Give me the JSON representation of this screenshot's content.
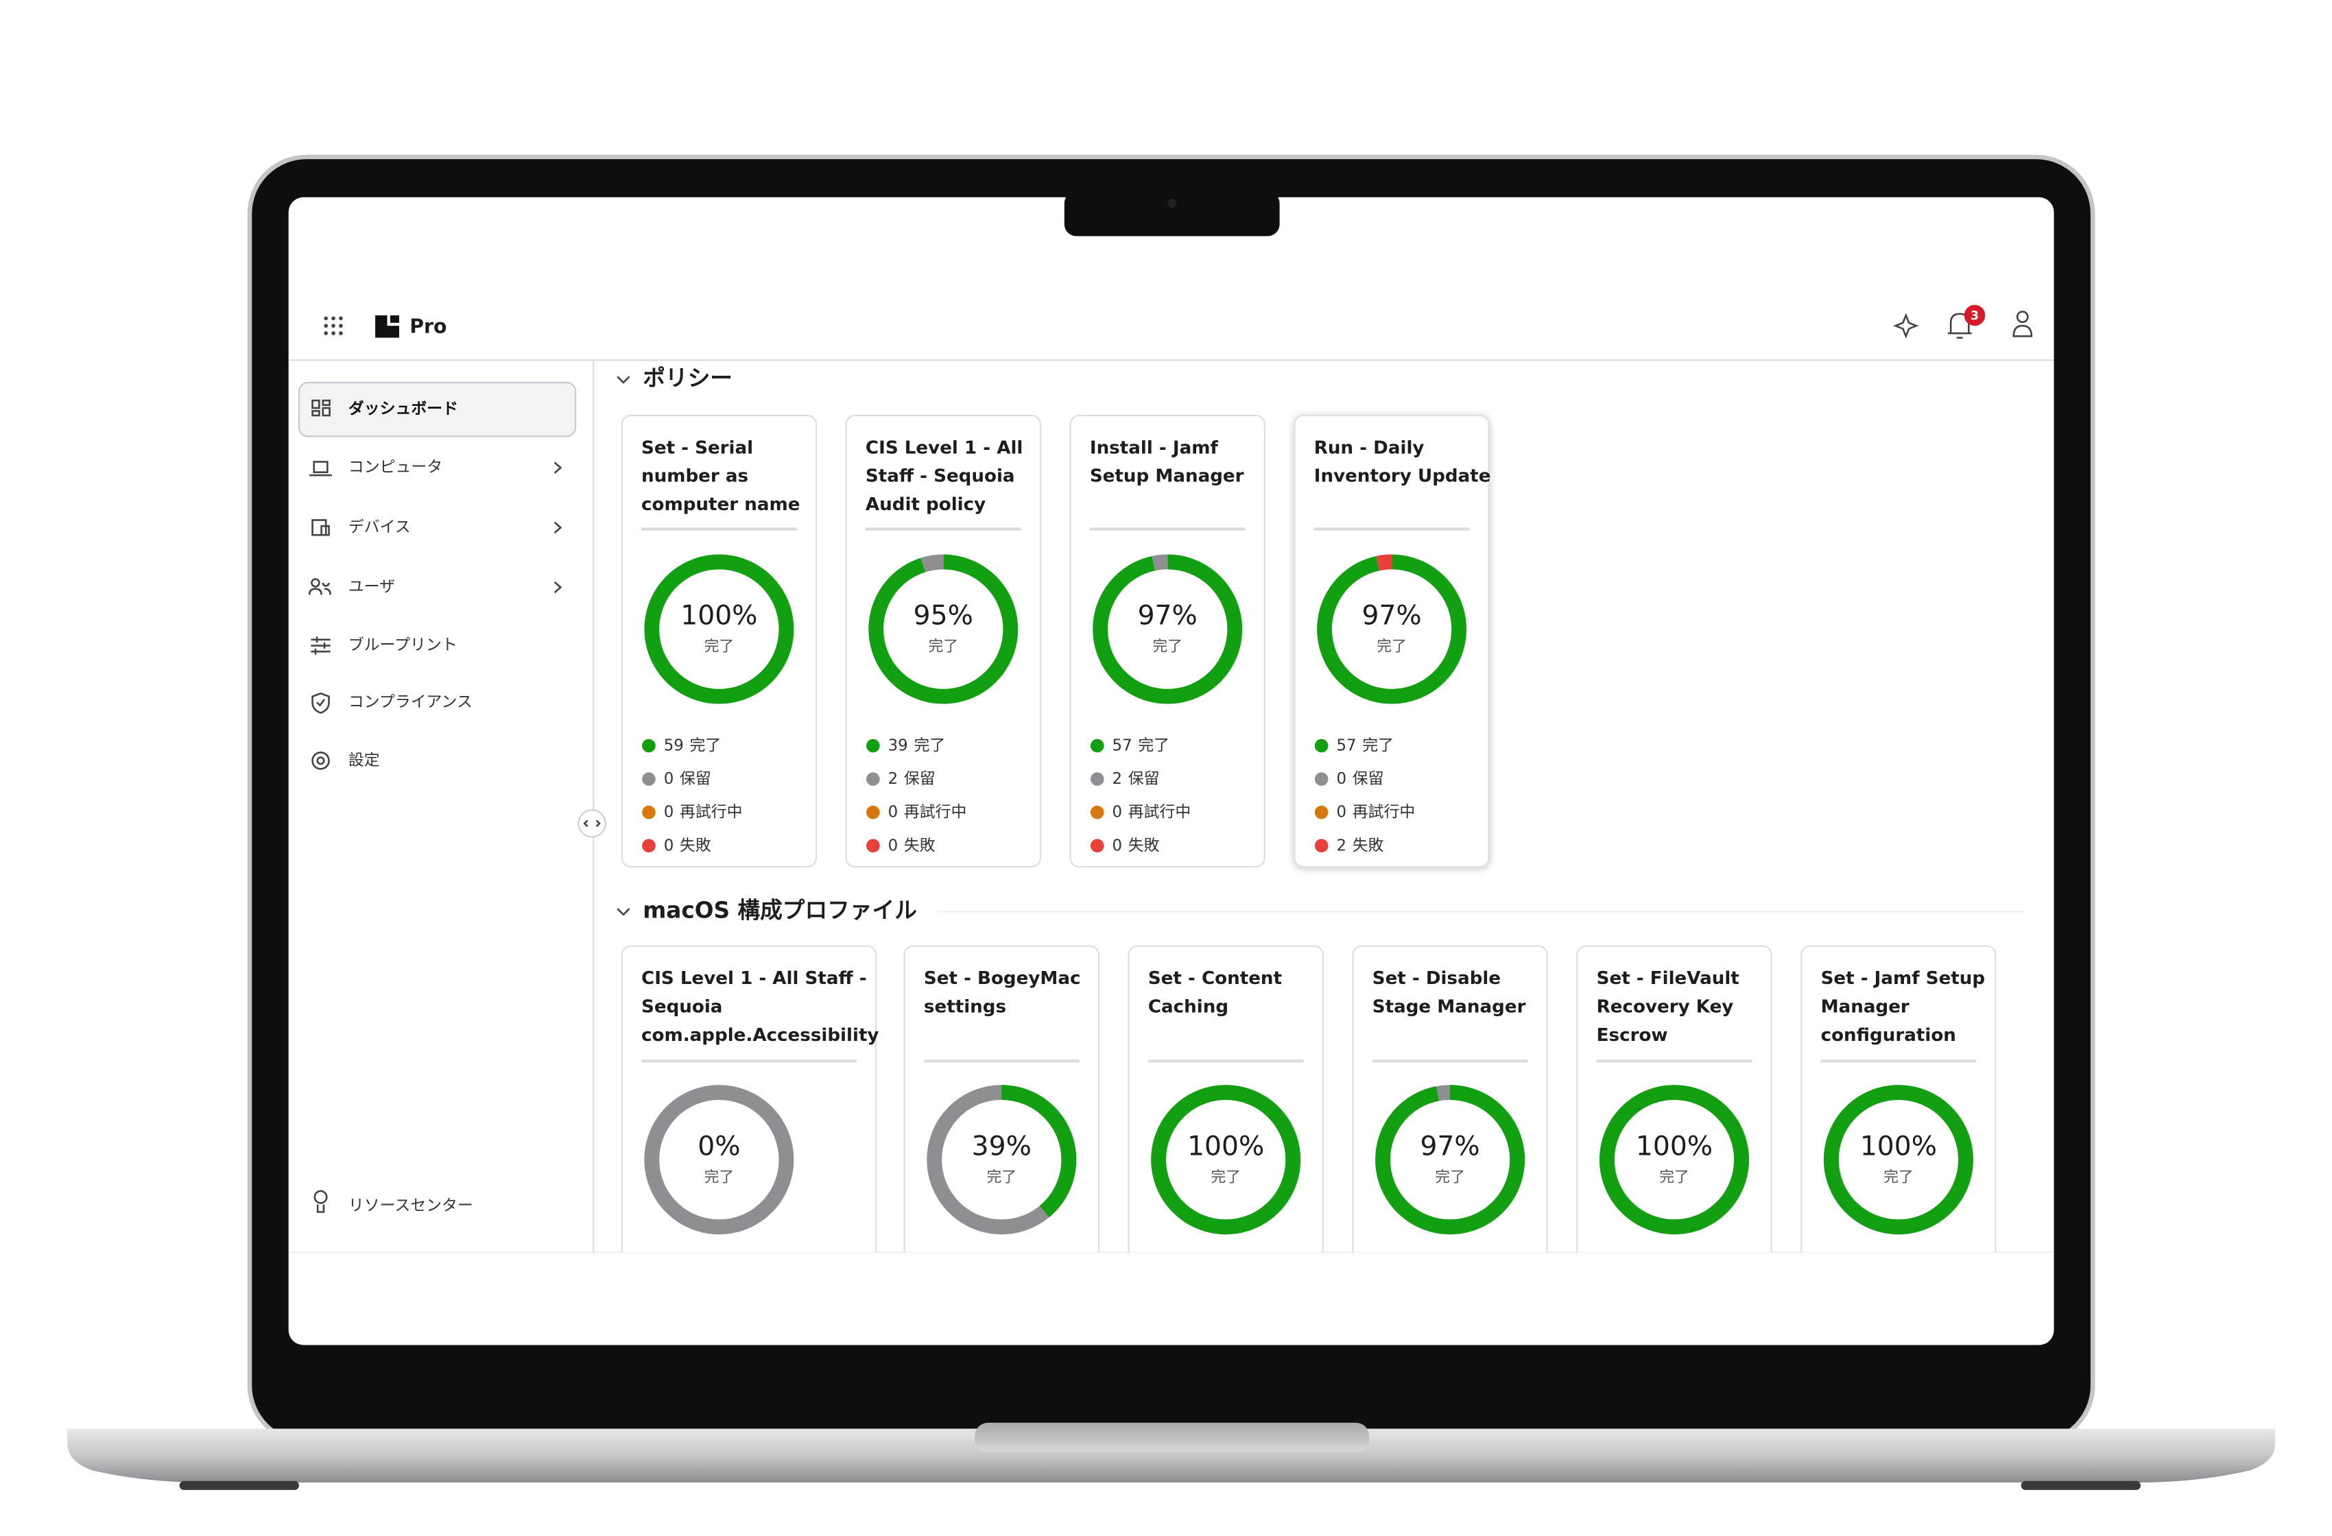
{
  "header": {
    "product": "Pro",
    "notification_count": 3
  },
  "sidebar": {
    "items": [
      "ダッシュボード",
      "コンピュータ",
      "デバイス",
      "ユーザ",
      "ブループリント",
      "コンプライアンス",
      "設定"
    ],
    "footer": "リソースセンター"
  },
  "status_labels": [
    "完了",
    "保留",
    "再試行中",
    "失敗"
  ],
  "status_colors": [
    "#12a012",
    "#8e8e93",
    "#d6780c",
    "#e8403a"
  ],
  "donut_caption": "完了",
  "policies": {
    "title": "ポリシー",
    "cards": [
      {
        "title_lines": [
          "Set - Serial",
          "number as",
          "computer name"
        ],
        "percent_label": "100%",
        "stats": [
          59,
          0,
          0,
          0
        ]
      },
      {
        "title_lines": [
          "CIS Level 1 - All",
          "Staff - Sequoia",
          "Audit policy"
        ],
        "percent_label": "95%",
        "stats": [
          39,
          2,
          0,
          0
        ]
      },
      {
        "title_lines": [
          "Install - Jamf",
          "Setup Manager"
        ],
        "percent_label": "97%",
        "stats": [
          57,
          2,
          0,
          0
        ]
      },
      {
        "title_lines": [
          "Run - Daily",
          "Inventory Update"
        ],
        "percent_label": "97%",
        "stats": [
          57,
          0,
          0,
          2
        ]
      }
    ]
  },
  "profiles": {
    "title": "macOS 構成プロファイル",
    "cards": [
      {
        "title_lines": [
          "CIS Level 1 - All Staff -",
          "Sequoia",
          "com.apple.Accessibility"
        ],
        "percent": 0,
        "percent_label": "0%"
      },
      {
        "title_lines": [
          "Set - BogeyMac",
          "settings"
        ],
        "percent": 39,
        "percent_label": "39%"
      },
      {
        "title_lines": [
          "Set - Content",
          "Caching"
        ],
        "percent": 100,
        "percent_label": "100%"
      },
      {
        "title_lines": [
          "Set - Disable",
          "Stage Manager"
        ],
        "percent": 97,
        "percent_label": "97%"
      },
      {
        "title_lines": [
          "Set - FileVault",
          "Recovery Key",
          "Escrow"
        ],
        "percent": 100,
        "percent_label": "100%"
      },
      {
        "title_lines": [
          "Set - Jamf Setup",
          "Manager",
          "configuration"
        ],
        "percent": 100,
        "percent_label": "100%"
      }
    ]
  }
}
